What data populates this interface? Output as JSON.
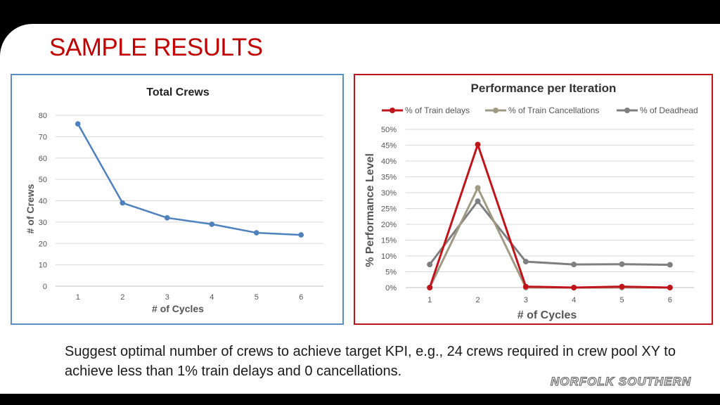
{
  "slide": {
    "title": "SAMPLE RESULTS",
    "caption": "Suggest optimal number of crews to achieve target KPI, e.g., 24 crews required in crew pool XY to achieve less than 1% train delays and 0 cancellations.",
    "logo_text": "NORFOLK SOUTHERN"
  },
  "colors": {
    "title": "#c00000",
    "left_border": "#5b8ec4",
    "right_border": "#c0141b",
    "crews_line": "#4e81bd",
    "train_delays": "#c0141b",
    "train_cancellations": "#a09a85",
    "deadhead": "#7f7f7f"
  },
  "chart_data": [
    {
      "type": "line",
      "title": "Total Crews",
      "xlabel": "# of Cycles",
      "ylabel": "# of Crews",
      "x": [
        1,
        2,
        3,
        4,
        5,
        6
      ],
      "series": [
        {
          "name": "Total Crews",
          "values": [
            76,
            39,
            32,
            29,
            25,
            24
          ]
        }
      ],
      "ylim": [
        0,
        80
      ],
      "yticks": [
        0,
        10,
        20,
        30,
        40,
        50,
        60,
        70,
        80
      ],
      "grid": true,
      "legend": "none"
    },
    {
      "type": "line",
      "title": "Performance per Iteration",
      "xlabel": "# of Cycles",
      "ylabel": "% Performance Level",
      "x": [
        1,
        2,
        3,
        4,
        5,
        6
      ],
      "series": [
        {
          "name": "% of Train delays",
          "values": [
            0,
            45.2,
            0.3,
            0,
            0.3,
            0
          ]
        },
        {
          "name": "% of Train Cancellations",
          "values": [
            0,
            31.5,
            0,
            0,
            0,
            0
          ]
        },
        {
          "name": "% of Deadhead",
          "values": [
            7.3,
            27.3,
            8.2,
            7.3,
            7.4,
            7.2
          ]
        }
      ],
      "ylim": [
        0,
        50
      ],
      "yticks": [
        "0%",
        "5%",
        "10%",
        "15%",
        "20%",
        "25%",
        "30%",
        "35%",
        "40%",
        "45%",
        "50%"
      ],
      "grid": true,
      "legend": "top"
    }
  ]
}
